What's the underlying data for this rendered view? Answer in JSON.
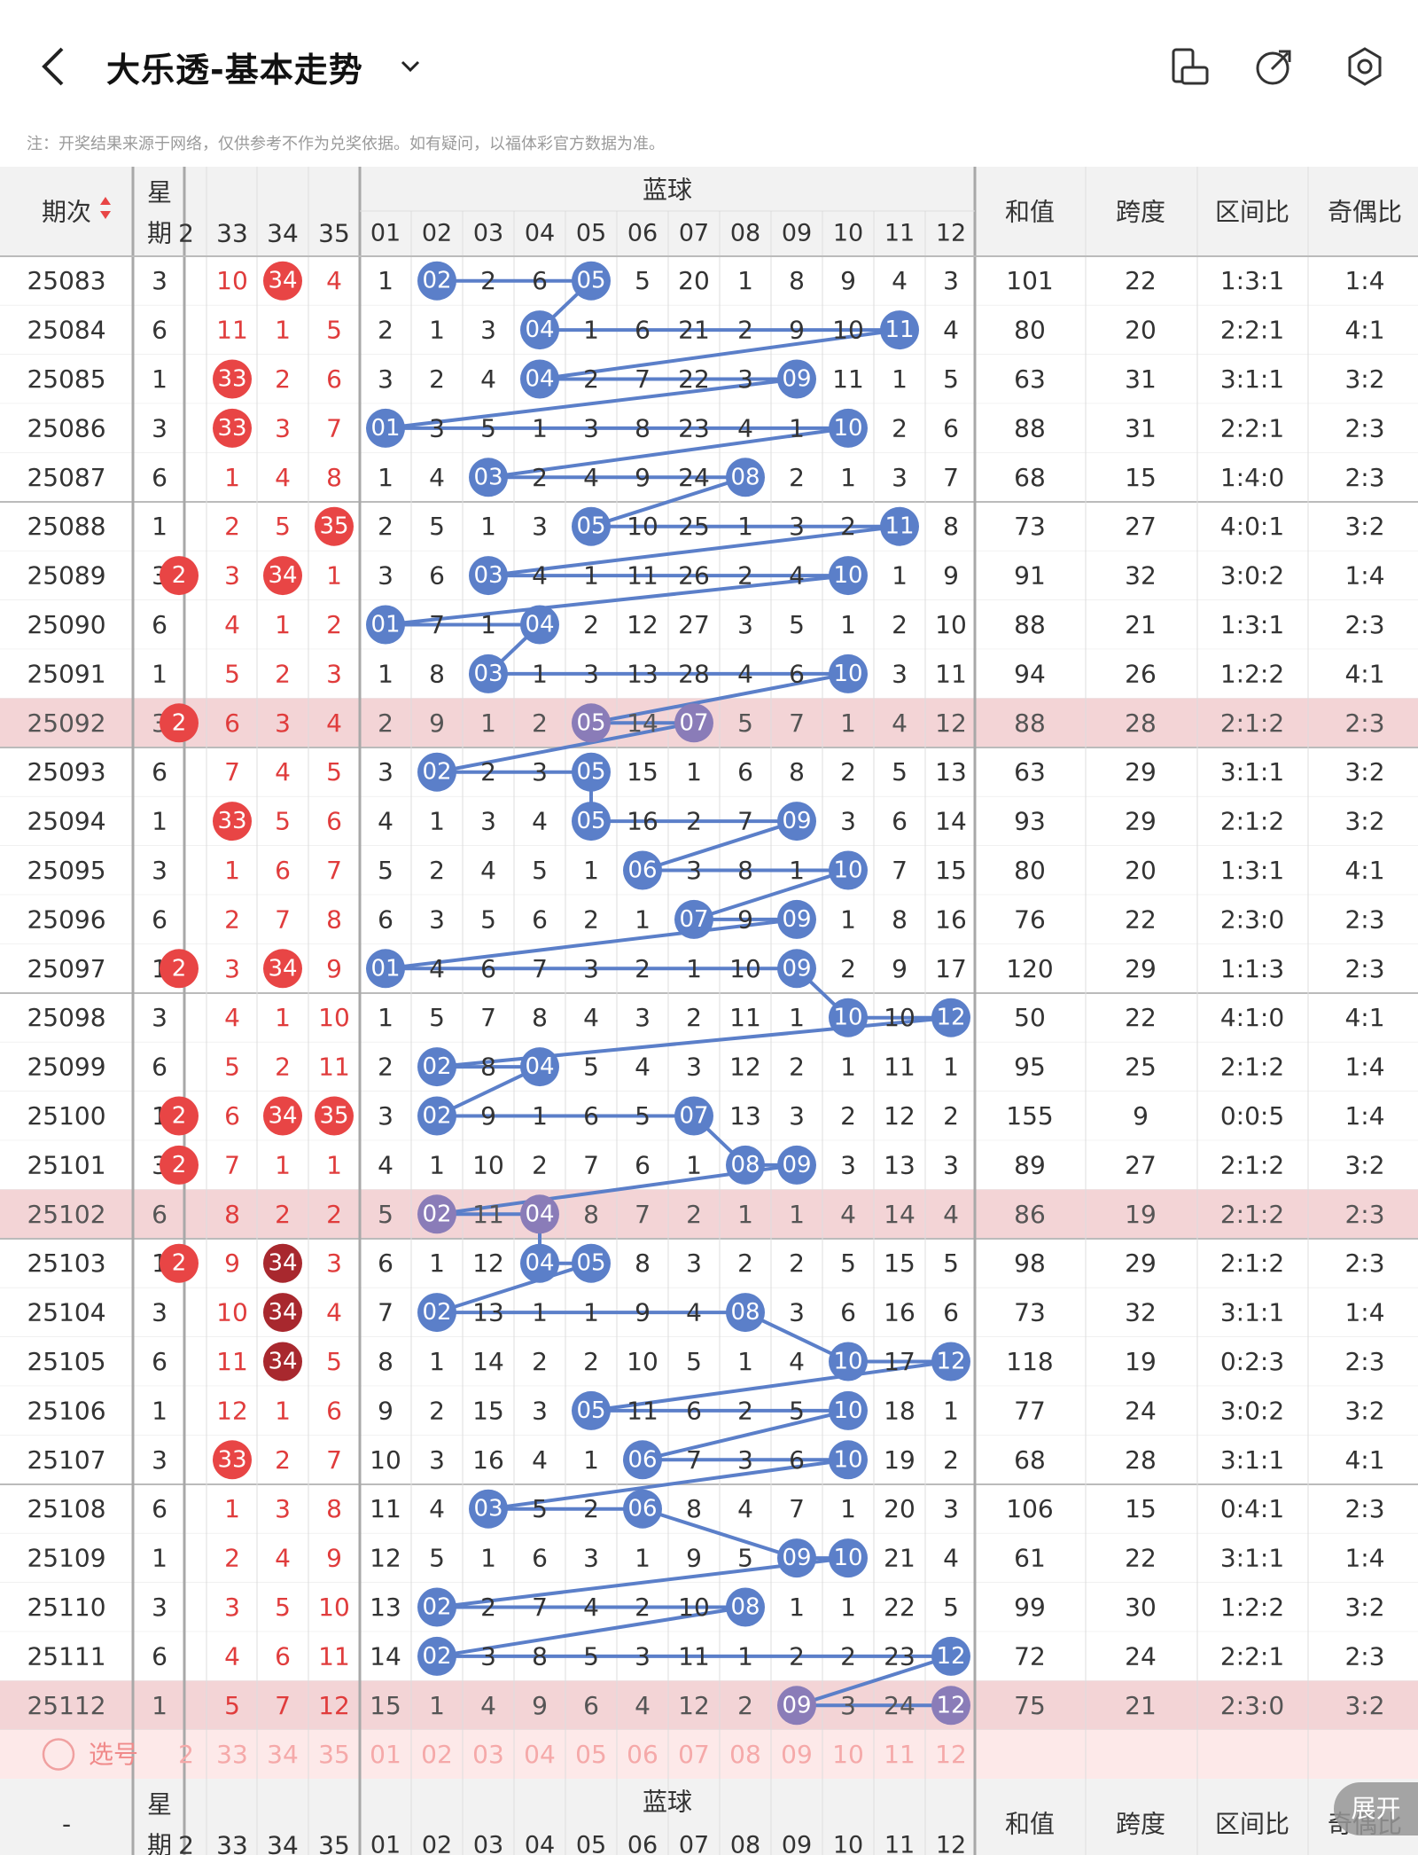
{
  "header": {
    "title": "大乐透-基本走势",
    "notice": "注：开奖结果来源于网络，仅供参考不作为兑奖依据。如有疑问，以福体彩官方数据为准。"
  },
  "table": {
    "col_period": "期次",
    "col_week": "星期",
    "blue_title": "蓝球",
    "col_sum": "和值",
    "col_span": "跨度",
    "col_zone": "区间比",
    "col_odd": "奇偶比",
    "red_tail_headers": [
      "33",
      "34",
      "35"
    ],
    "red_partial_header": "2",
    "blue_headers": [
      "01",
      "02",
      "03",
      "04",
      "05",
      "06",
      "07",
      "08",
      "09",
      "10",
      "11",
      "12"
    ],
    "select_label": "选号",
    "footer_period": "-",
    "expand_label": "展开",
    "rows": [
      {
        "period": "25083",
        "week": "3",
        "r32": "",
        "reds": [
          "10",
          "34",
          "4"
        ],
        "blue": [
          "1",
          "02",
          "2",
          "6",
          "05",
          "5",
          "20",
          "1",
          "8",
          "9",
          "4",
          "3"
        ],
        "sum": "101",
        "span": "22",
        "zone": "1:3:1",
        "odd": "1:4"
      },
      {
        "period": "25084",
        "week": "6",
        "r32": "",
        "reds": [
          "11",
          "1",
          "5"
        ],
        "blue": [
          "2",
          "1",
          "3",
          "04",
          "1",
          "6",
          "21",
          "2",
          "9",
          "10",
          "11",
          "4"
        ],
        "sum": "80",
        "span": "20",
        "zone": "2:2:1",
        "odd": "4:1"
      },
      {
        "period": "25085",
        "week": "1",
        "r32": "",
        "reds": [
          "33",
          "2",
          "6"
        ],
        "blue": [
          "3",
          "2",
          "4",
          "04",
          "2",
          "7",
          "22",
          "3",
          "09",
          "11",
          "1",
          "5"
        ],
        "sum": "63",
        "span": "31",
        "zone": "3:1:1",
        "odd": "3:2"
      },
      {
        "period": "25086",
        "week": "3",
        "r32": "",
        "reds": [
          "33",
          "3",
          "7"
        ],
        "blue": [
          "01",
          "3",
          "5",
          "1",
          "3",
          "8",
          "23",
          "4",
          "1",
          "10",
          "2",
          "6"
        ],
        "sum": "88",
        "span": "31",
        "zone": "2:2:1",
        "odd": "2:3"
      },
      {
        "period": "25087",
        "week": "6",
        "r32": "",
        "reds": [
          "1",
          "4",
          "8"
        ],
        "blue": [
          "1",
          "4",
          "03",
          "2",
          "4",
          "9",
          "24",
          "08",
          "2",
          "1",
          "3",
          "7"
        ],
        "sum": "68",
        "span": "15",
        "zone": "1:4:0",
        "odd": "2:3"
      },
      {
        "period": "25088",
        "week": "1",
        "r32": "",
        "reds": [
          "2",
          "5",
          "35"
        ],
        "blue": [
          "2",
          "5",
          "1",
          "3",
          "05",
          "10",
          "25",
          "1",
          "3",
          "2",
          "11",
          "8"
        ],
        "sum": "73",
        "span": "27",
        "zone": "4:0:1",
        "odd": "3:2"
      },
      {
        "period": "25089",
        "week": "3",
        "r32": "2",
        "reds": [
          "3",
          "34",
          "1"
        ],
        "blue": [
          "3",
          "6",
          "03",
          "4",
          "1",
          "11",
          "26",
          "2",
          "4",
          "10",
          "1",
          "9"
        ],
        "sum": "91",
        "span": "32",
        "zone": "3:0:2",
        "odd": "1:4"
      },
      {
        "period": "25090",
        "week": "6",
        "r32": "",
        "reds": [
          "4",
          "1",
          "2"
        ],
        "blue": [
          "01",
          "7",
          "1",
          "04",
          "2",
          "12",
          "27",
          "3",
          "5",
          "1",
          "2",
          "10"
        ],
        "sum": "88",
        "span": "21",
        "zone": "1:3:1",
        "odd": "2:3"
      },
      {
        "period": "25091",
        "week": "1",
        "r32": "",
        "reds": [
          "5",
          "2",
          "3"
        ],
        "blue": [
          "1",
          "8",
          "03",
          "1",
          "3",
          "13",
          "28",
          "4",
          "6",
          "10",
          "3",
          "11"
        ],
        "sum": "94",
        "span": "26",
        "zone": "1:2:2",
        "odd": "4:1"
      },
      {
        "period": "25092",
        "week": "3",
        "r32": "2",
        "reds": [
          "6",
          "3",
          "4"
        ],
        "blue": [
          "2",
          "9",
          "1",
          "2",
          "05",
          "14",
          "07",
          "5",
          "7",
          "1",
          "4",
          "12"
        ],
        "sum": "88",
        "span": "28",
        "zone": "2:1:2",
        "odd": "2:3"
      },
      {
        "period": "25093",
        "week": "6",
        "r32": "",
        "reds": [
          "7",
          "4",
          "5"
        ],
        "blue": [
          "3",
          "02",
          "2",
          "3",
          "05",
          "15",
          "1",
          "6",
          "8",
          "2",
          "5",
          "13"
        ],
        "sum": "63",
        "span": "29",
        "zone": "3:1:1",
        "odd": "3:2"
      },
      {
        "period": "25094",
        "week": "1",
        "r32": "",
        "reds": [
          "33",
          "5",
          "6"
        ],
        "blue": [
          "4",
          "1",
          "3",
          "4",
          "05",
          "16",
          "2",
          "7",
          "09",
          "3",
          "6",
          "14"
        ],
        "sum": "93",
        "span": "29",
        "zone": "2:1:2",
        "odd": "3:2"
      },
      {
        "period": "25095",
        "week": "3",
        "r32": "",
        "reds": [
          "1",
          "6",
          "7"
        ],
        "blue": [
          "5",
          "2",
          "4",
          "5",
          "1",
          "06",
          "3",
          "8",
          "1",
          "10",
          "7",
          "15"
        ],
        "sum": "80",
        "span": "20",
        "zone": "1:3:1",
        "odd": "4:1"
      },
      {
        "period": "25096",
        "week": "6",
        "r32": "",
        "reds": [
          "2",
          "7",
          "8"
        ],
        "blue": [
          "6",
          "3",
          "5",
          "6",
          "2",
          "1",
          "07",
          "9",
          "09",
          "1",
          "8",
          "16"
        ],
        "sum": "76",
        "span": "22",
        "zone": "2:3:0",
        "odd": "2:3"
      },
      {
        "period": "25097",
        "week": "1",
        "r32": "2",
        "reds": [
          "3",
          "34",
          "9"
        ],
        "blue": [
          "01",
          "4",
          "6",
          "7",
          "3",
          "2",
          "1",
          "10",
          "09",
          "2",
          "9",
          "17"
        ],
        "sum": "120",
        "span": "29",
        "zone": "1:1:3",
        "odd": "2:3"
      },
      {
        "period": "25098",
        "week": "3",
        "r32": "",
        "reds": [
          "4",
          "1",
          "10"
        ],
        "blue": [
          "1",
          "5",
          "7",
          "8",
          "4",
          "3",
          "2",
          "11",
          "1",
          "10",
          "10",
          "12"
        ],
        "sum": "50",
        "span": "22",
        "zone": "4:1:0",
        "odd": "4:1"
      },
      {
        "period": "25099",
        "week": "6",
        "r32": "",
        "reds": [
          "5",
          "2",
          "11"
        ],
        "blue": [
          "2",
          "02",
          "8",
          "04",
          "5",
          "4",
          "3",
          "12",
          "2",
          "1",
          "11",
          "1"
        ],
        "sum": "95",
        "span": "25",
        "zone": "2:1:2",
        "odd": "1:4"
      },
      {
        "period": "25100",
        "week": "1",
        "r32": "2",
        "reds": [
          "6",
          "34",
          "35"
        ],
        "blue": [
          "3",
          "02",
          "9",
          "1",
          "6",
          "5",
          "07",
          "13",
          "3",
          "2",
          "12",
          "2"
        ],
        "sum": "155",
        "span": "9",
        "zone": "0:0:5",
        "odd": "1:4"
      },
      {
        "period": "25101",
        "week": "3",
        "r32": "2",
        "reds": [
          "7",
          "1",
          "1"
        ],
        "blue": [
          "4",
          "1",
          "10",
          "2",
          "7",
          "6",
          "1",
          "08",
          "09",
          "3",
          "13",
          "3"
        ],
        "sum": "89",
        "span": "27",
        "zone": "2:1:2",
        "odd": "3:2"
      },
      {
        "period": "25102",
        "week": "6",
        "r32": "",
        "reds": [
          "8",
          "2",
          "2"
        ],
        "blue": [
          "5",
          "02",
          "11",
          "04",
          "8",
          "7",
          "2",
          "1",
          "1",
          "4",
          "14",
          "4"
        ],
        "sum": "86",
        "span": "19",
        "zone": "2:1:2",
        "odd": "2:3"
      },
      {
        "period": "25103",
        "week": "1",
        "r32": "2",
        "reds": [
          "9",
          "34",
          "3"
        ],
        "blue": [
          "6",
          "1",
          "12",
          "04",
          "05",
          "8",
          "3",
          "2",
          "2",
          "5",
          "15",
          "5"
        ],
        "sum": "98",
        "span": "29",
        "zone": "2:1:2",
        "odd": "2:3"
      },
      {
        "period": "25104",
        "week": "3",
        "r32": "",
        "reds": [
          "10",
          "34",
          "4"
        ],
        "blue": [
          "7",
          "02",
          "13",
          "1",
          "1",
          "9",
          "4",
          "08",
          "3",
          "6",
          "16",
          "6"
        ],
        "sum": "73",
        "span": "32",
        "zone": "3:1:1",
        "odd": "1:4"
      },
      {
        "period": "25105",
        "week": "6",
        "r32": "",
        "reds": [
          "11",
          "34",
          "5"
        ],
        "blue": [
          "8",
          "1",
          "14",
          "2",
          "2",
          "10",
          "5",
          "1",
          "4",
          "10",
          "17",
          "12"
        ],
        "sum": "118",
        "span": "19",
        "zone": "0:2:3",
        "odd": "2:3"
      },
      {
        "period": "25106",
        "week": "1",
        "r32": "",
        "reds": [
          "12",
          "1",
          "6"
        ],
        "blue": [
          "9",
          "2",
          "15",
          "3",
          "05",
          "11",
          "6",
          "2",
          "5",
          "10",
          "18",
          "1"
        ],
        "sum": "77",
        "span": "24",
        "zone": "3:0:2",
        "odd": "3:2"
      },
      {
        "period": "25107",
        "week": "3",
        "r32": "",
        "reds": [
          "33",
          "2",
          "7"
        ],
        "blue": [
          "10",
          "3",
          "16",
          "4",
          "1",
          "06",
          "7",
          "3",
          "6",
          "10",
          "19",
          "2"
        ],
        "sum": "68",
        "span": "28",
        "zone": "3:1:1",
        "odd": "4:1"
      },
      {
        "period": "25108",
        "week": "6",
        "r32": "",
        "reds": [
          "1",
          "3",
          "8"
        ],
        "blue": [
          "11",
          "4",
          "03",
          "5",
          "2",
          "06",
          "8",
          "4",
          "7",
          "1",
          "20",
          "3"
        ],
        "sum": "106",
        "span": "15",
        "zone": "0:4:1",
        "odd": "2:3"
      },
      {
        "period": "25109",
        "week": "1",
        "r32": "",
        "reds": [
          "2",
          "4",
          "9"
        ],
        "blue": [
          "12",
          "5",
          "1",
          "6",
          "3",
          "1",
          "9",
          "5",
          "09",
          "10",
          "21",
          "4"
        ],
        "sum": "61",
        "span": "22",
        "zone": "3:1:1",
        "odd": "1:4"
      },
      {
        "period": "25110",
        "week": "3",
        "r32": "",
        "reds": [
          "3",
          "5",
          "10"
        ],
        "blue": [
          "13",
          "02",
          "2",
          "7",
          "4",
          "2",
          "10",
          "08",
          "1",
          "1",
          "22",
          "5"
        ],
        "sum": "99",
        "span": "30",
        "zone": "1:2:2",
        "odd": "3:2"
      },
      {
        "period": "25111",
        "week": "6",
        "r32": "",
        "reds": [
          "4",
          "6",
          "11"
        ],
        "blue": [
          "14",
          "02",
          "3",
          "8",
          "5",
          "3",
          "11",
          "1",
          "2",
          "2",
          "23",
          "12"
        ],
        "sum": "72",
        "span": "24",
        "zone": "2:2:1",
        "odd": "2:3"
      },
      {
        "period": "25112",
        "week": "1",
        "r32": "",
        "reds": [
          "5",
          "7",
          "12"
        ],
        "blue": [
          "15",
          "1",
          "4",
          "9",
          "6",
          "4",
          "12",
          "2",
          "09",
          "3",
          "24",
          "12"
        ],
        "sum": "75",
        "span": "21",
        "zone": "2:3:0",
        "odd": "3:2"
      }
    ],
    "blue_hits": [
      [
        2,
        5
      ],
      [
        4,
        11
      ],
      [
        4,
        9
      ],
      [
        1,
        10
      ],
      [
        3,
        8
      ],
      [
        5,
        11
      ],
      [
        3,
        10
      ],
      [
        1,
        4
      ],
      [
        3,
        10
      ],
      [
        5,
        7
      ],
      [
        2,
        5
      ],
      [
        5,
        9
      ],
      [
        6,
        10
      ],
      [
        7,
        9
      ],
      [
        1,
        9
      ],
      [
        10,
        12
      ],
      [
        2,
        4
      ],
      [
        2,
        7
      ],
      [
        8,
        9
      ],
      [
        2,
        4
      ],
      [
        4,
        5
      ],
      [
        2,
        8
      ],
      [
        10,
        12
      ],
      [
        5,
        10
      ],
      [
        6,
        10
      ],
      [
        3,
        6
      ],
      [
        9,
        10
      ],
      [
        2,
        8
      ],
      [
        2,
        12
      ],
      [
        9,
        12
      ]
    ],
    "red_hits": [
      [
        1
      ],
      [],
      [
        0
      ],
      [
        0
      ],
      [],
      [
        2
      ],
      [
        1
      ],
      [],
      [],
      [],
      [],
      [
        0
      ],
      [],
      [],
      [
        1
      ],
      [],
      [],
      [
        1,
        2
      ],
      [],
      [],
      [
        1
      ],
      [
        1
      ],
      [
        1
      ],
      [],
      [
        0
      ],
      [],
      [],
      [],
      [],
      []
    ],
    "dark_red_hits": [
      [
        20,
        1
      ],
      [
        21,
        1
      ],
      [
        22,
        1
      ]
    ],
    "highlight_rows": [
      9,
      19,
      29
    ],
    "colors": {
      "blue_ball": "#5b7fc9",
      "red_ball": "#e84545",
      "dark_red_ball": "#a8282e",
      "highlight": "#f3d4d6",
      "red_text": "#e03c3c",
      "line_blue": "#5b7fc9"
    }
  }
}
